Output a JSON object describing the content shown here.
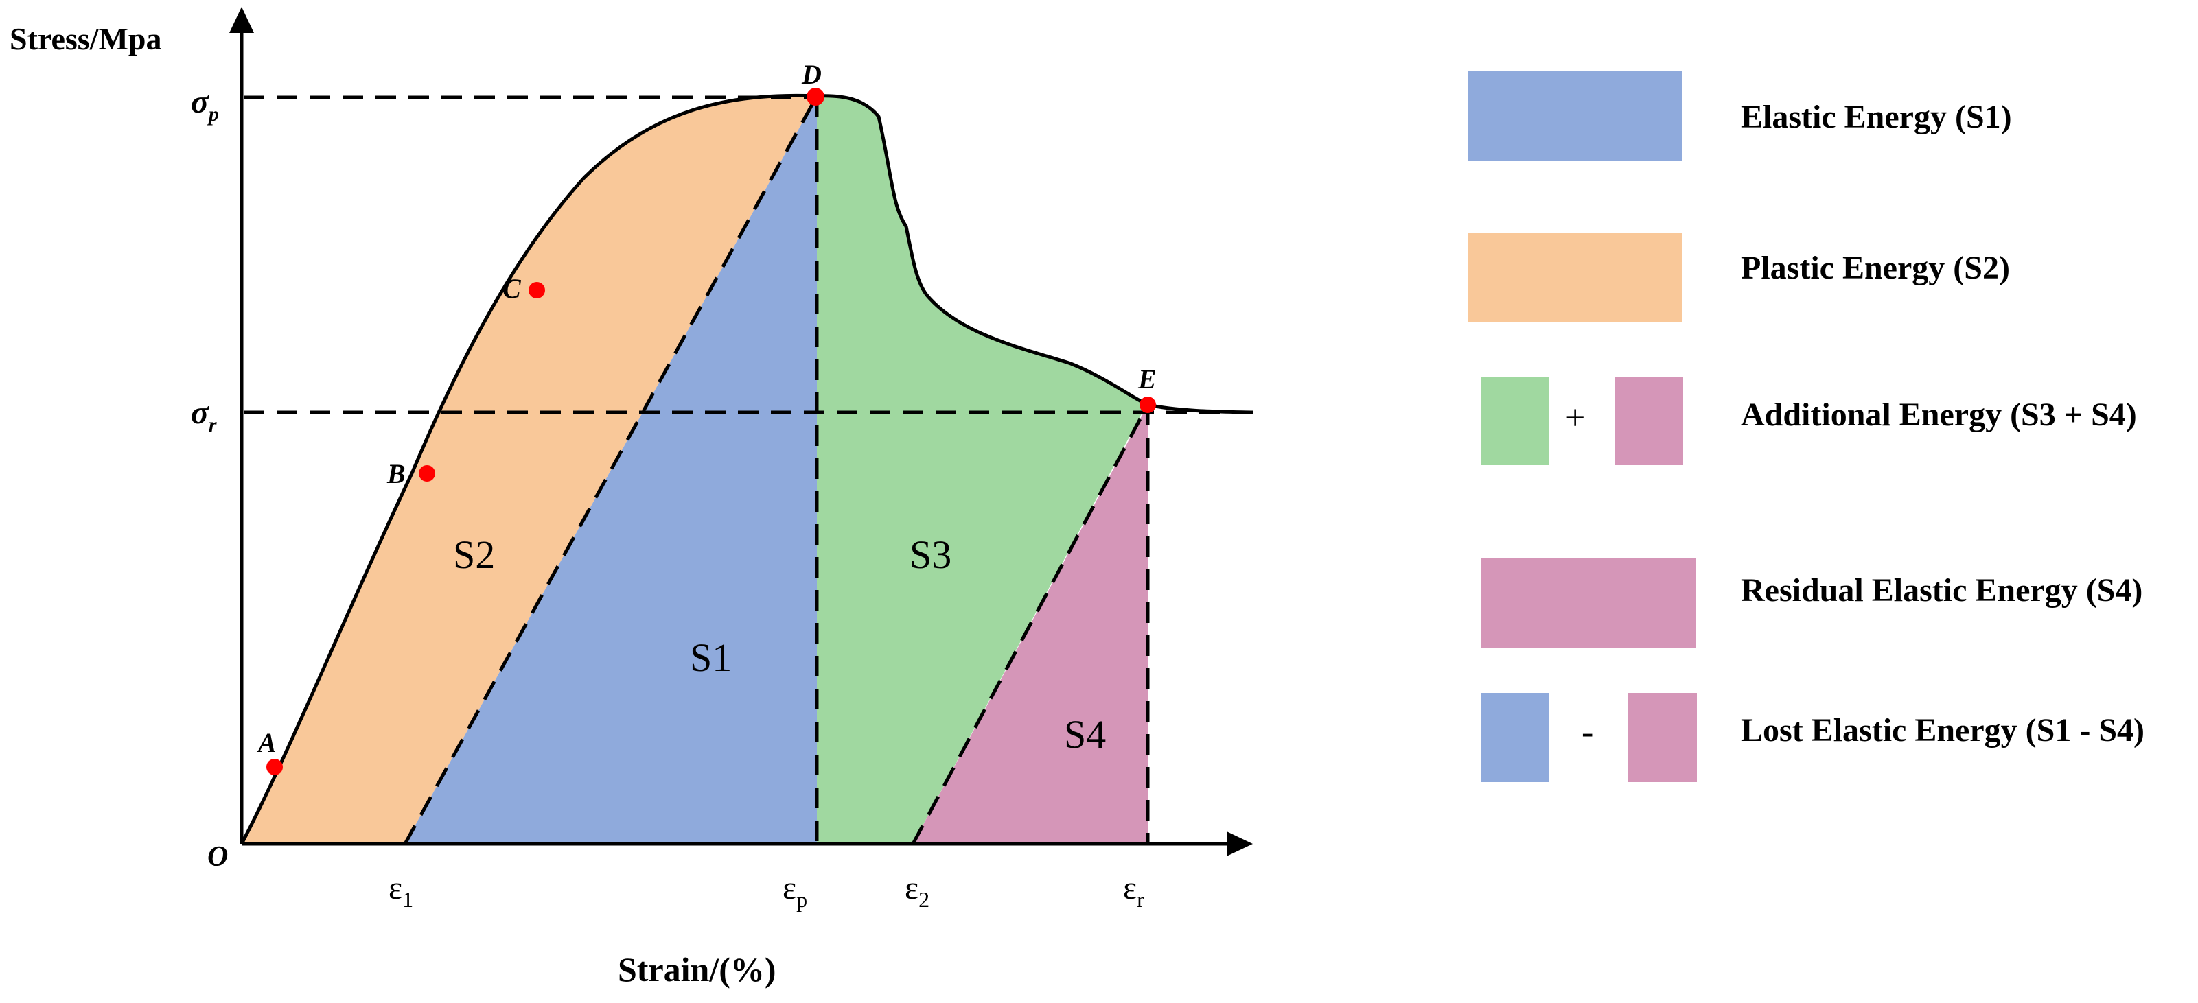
{
  "colors": {
    "elastic": "#8faadc",
    "plastic": "#f9c899",
    "additional": "#a0d8a0",
    "residual": "#d596b8",
    "point": "#ff0000",
    "line": "#000000"
  },
  "axes": {
    "y_label": "Stress/Mpa",
    "x_label": "Strain/(%)",
    "origin": "O",
    "y_ticks": {
      "sigma_p": "σ",
      "sigma_p_sub": "p",
      "sigma_r": "σ",
      "sigma_r_sub": "r"
    },
    "x_ticks": [
      {
        "base": "ε",
        "sub": "1"
      },
      {
        "base": "ε",
        "sub": "p"
      },
      {
        "base": "ε",
        "sub": "2"
      },
      {
        "base": "ε",
        "sub": "r"
      }
    ]
  },
  "points": [
    "A",
    "B",
    "C",
    "D",
    "E"
  ],
  "regions": {
    "s1": "S1",
    "s2": "S2",
    "s3": "S3",
    "s4": "S4"
  },
  "legend": [
    {
      "label": "Elastic Energy (S1)",
      "swatch": "elastic"
    },
    {
      "label": "Plastic Energy (S2)",
      "swatch": "plastic"
    },
    {
      "label": "Additional Energy (S3 + S4)",
      "swatch": "additional+residual",
      "op": "+"
    },
    {
      "label": "Residual Elastic Energy (S4)",
      "swatch": "residual"
    },
    {
      "label": "Lost Elastic Energy (S1 - S4)",
      "swatch": "elastic-residual",
      "op": "-"
    }
  ]
}
